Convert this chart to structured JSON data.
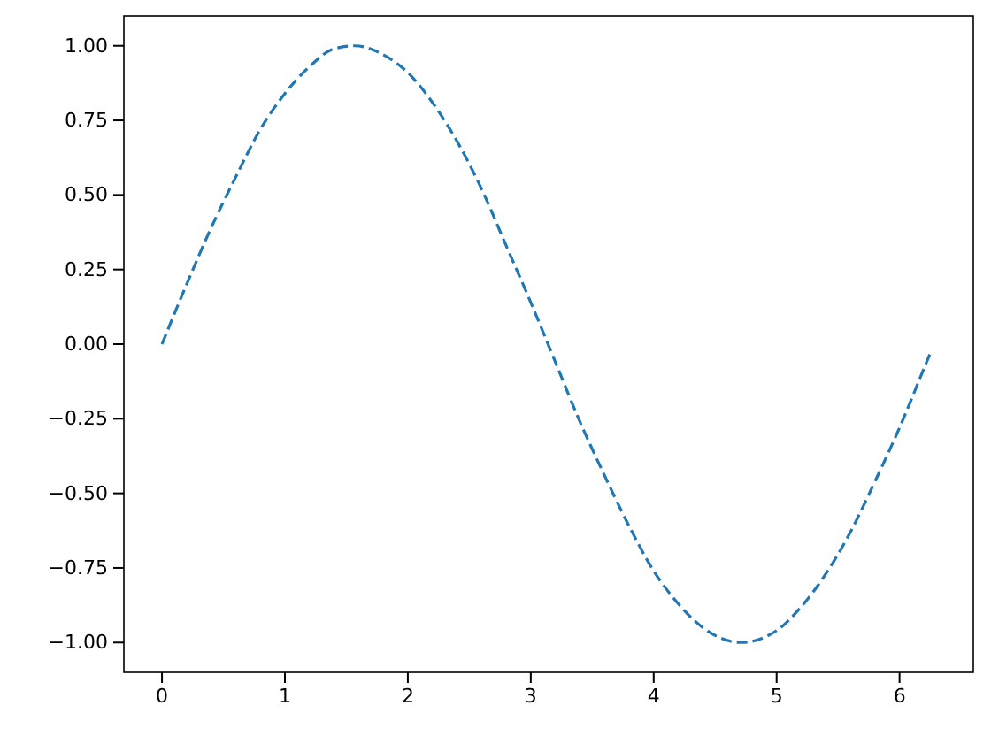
{
  "chart_data": {
    "type": "line",
    "line_style": "dashed",
    "marker": "none",
    "grid": false,
    "x": [
      0,
      0.2,
      0.4,
      0.6,
      0.8,
      1.0,
      1.2,
      1.4,
      1.57,
      1.8,
      2.0,
      2.2,
      2.4,
      2.6,
      2.8,
      3.0,
      3.2,
      3.4,
      3.6,
      3.8,
      4.0,
      4.2,
      4.4,
      4.71,
      5.0,
      5.2,
      5.4,
      5.6,
      5.8,
      6.0,
      6.2,
      6.26
    ],
    "series": [
      {
        "color": "#1f77b4",
        "values": [
          0,
          0.2,
          0.39,
          0.56,
          0.72,
          0.84,
          0.93,
          0.99,
          1.0,
          0.97,
          0.91,
          0.81,
          0.68,
          0.52,
          0.33,
          0.14,
          -0.06,
          -0.26,
          -0.44,
          -0.61,
          -0.76,
          -0.87,
          -0.95,
          -1.0,
          -0.96,
          -0.88,
          -0.77,
          -0.63,
          -0.46,
          -0.28,
          -0.08,
          -0.02
        ]
      }
    ],
    "xlim": [
      -0.31,
      6.6
    ],
    "xticks": [
      0,
      1,
      2,
      3,
      4,
      5,
      6
    ],
    "ylim": [
      -1.1,
      1.1
    ],
    "yticks": [
      {
        "value": -1,
        "label": "−1.00"
      },
      {
        "value": -0.75,
        "label": "−0.75"
      },
      {
        "value": -0.5,
        "label": "−0.50"
      },
      {
        "value": -0.25,
        "label": "−0.25"
      },
      {
        "value": 0,
        "label": "0.00"
      },
      {
        "value": 0.25,
        "label": "0.25"
      },
      {
        "value": 0.5,
        "label": "0.50"
      },
      {
        "value": 0.75,
        "label": "0.75"
      },
      {
        "value": 1,
        "label": "1.00"
      }
    ]
  }
}
